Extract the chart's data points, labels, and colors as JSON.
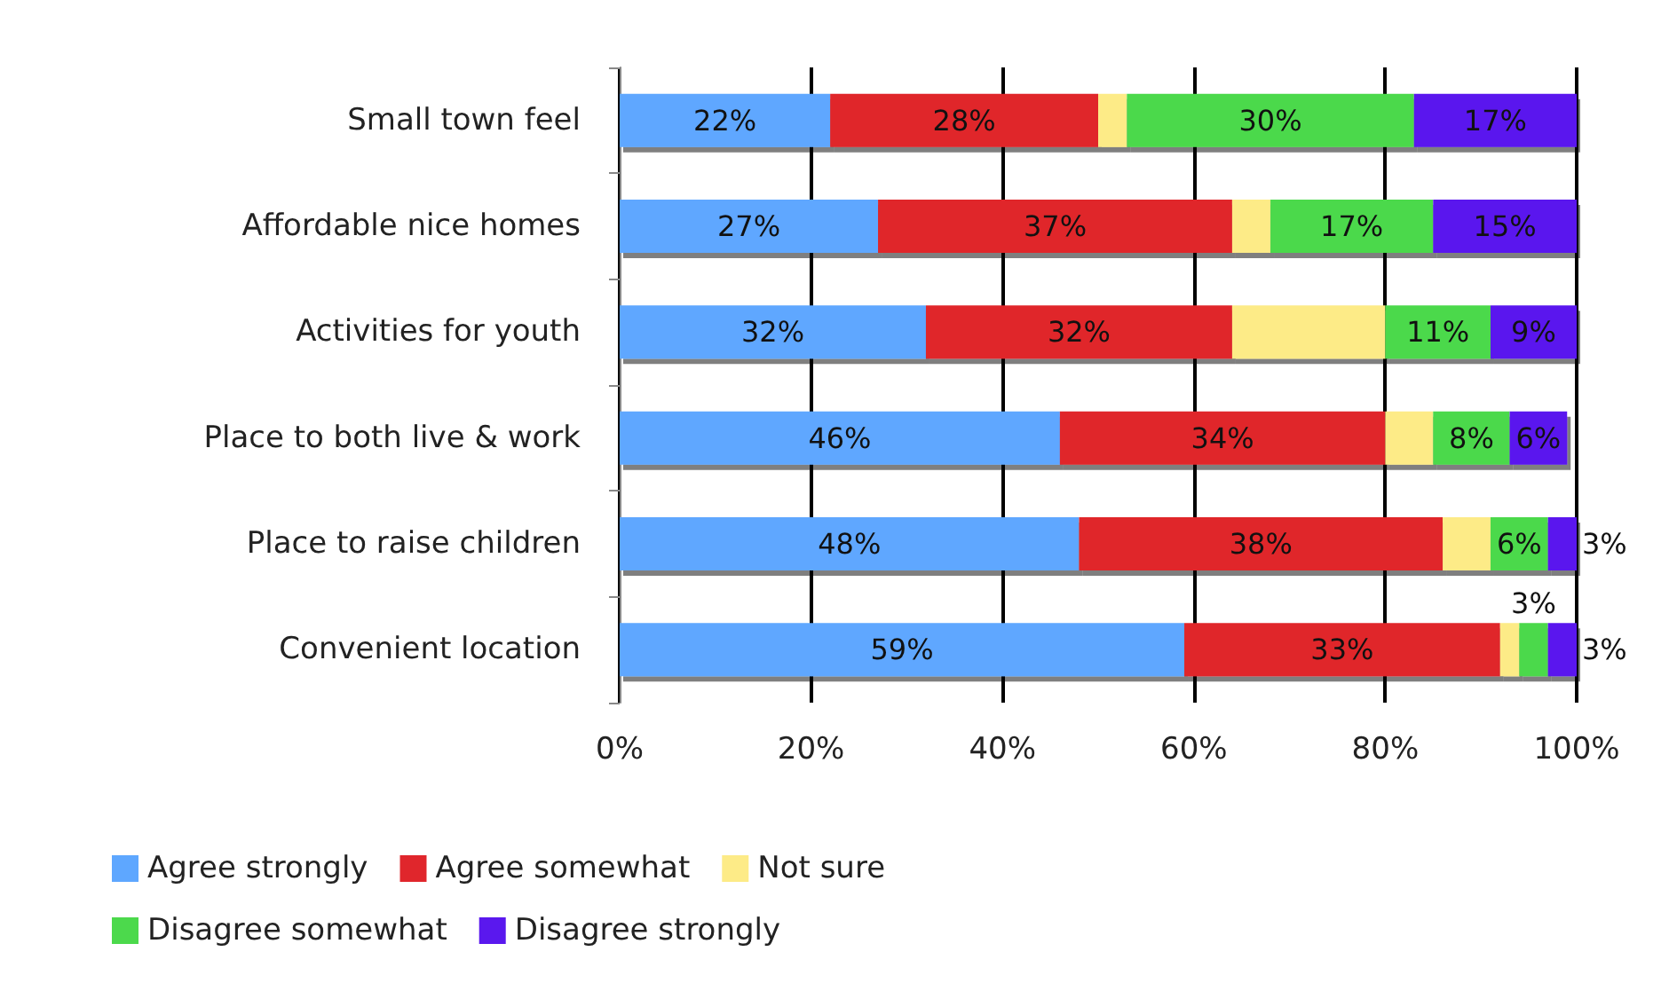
{
  "chart_data": {
    "type": "bar",
    "orientation": "horizontal",
    "stacked": true,
    "categories": [
      "Small town feel",
      "Affordable nice homes",
      "Activities for youth",
      "Place to both live & work",
      "Place to raise children",
      "Convenient location"
    ],
    "series": [
      {
        "name": "Agree strongly",
        "color": "#5ea7ff",
        "values": [
          22,
          27,
          32,
          46,
          48,
          59
        ],
        "value_labels": [
          "22%",
          "27%",
          "32%",
          "46%",
          "48%",
          "59%"
        ]
      },
      {
        "name": "Agree somewhat",
        "color": "#e0262c",
        "values": [
          28,
          37,
          32,
          34,
          38,
          33
        ],
        "value_labels": [
          "28%",
          "37%",
          "32%",
          "34%",
          "38%",
          "33%"
        ]
      },
      {
        "name": "Not sure",
        "color": "#fdeb87",
        "values": [
          3,
          4,
          16,
          5,
          5,
          2
        ],
        "value_labels": [
          null,
          null,
          null,
          null,
          null,
          null
        ]
      },
      {
        "name": "Disagree somewhat",
        "color": "#4cd94c",
        "values": [
          30,
          17,
          11,
          8,
          6,
          3
        ],
        "value_labels": [
          "30%",
          "17%",
          "11%",
          "8%",
          "6%",
          "3%"
        ]
      },
      {
        "name": "Disagree strongly",
        "color": "#5a18ee",
        "values": [
          17,
          15,
          9,
          6,
          3,
          3
        ],
        "value_labels": [
          "17%",
          "15%",
          "9%",
          "6%",
          "3%",
          "3%"
        ]
      }
    ],
    "xlim": [
      0,
      100
    ],
    "xticks": [
      {
        "value": 0,
        "label": "0%"
      },
      {
        "value": 20,
        "label": "20%"
      },
      {
        "value": 40,
        "label": "40%"
      },
      {
        "value": 60,
        "label": "60%"
      },
      {
        "value": 80,
        "label": "80%"
      },
      {
        "value": 100,
        "label": "100%"
      }
    ],
    "grid": "x",
    "legend": "bottom"
  }
}
